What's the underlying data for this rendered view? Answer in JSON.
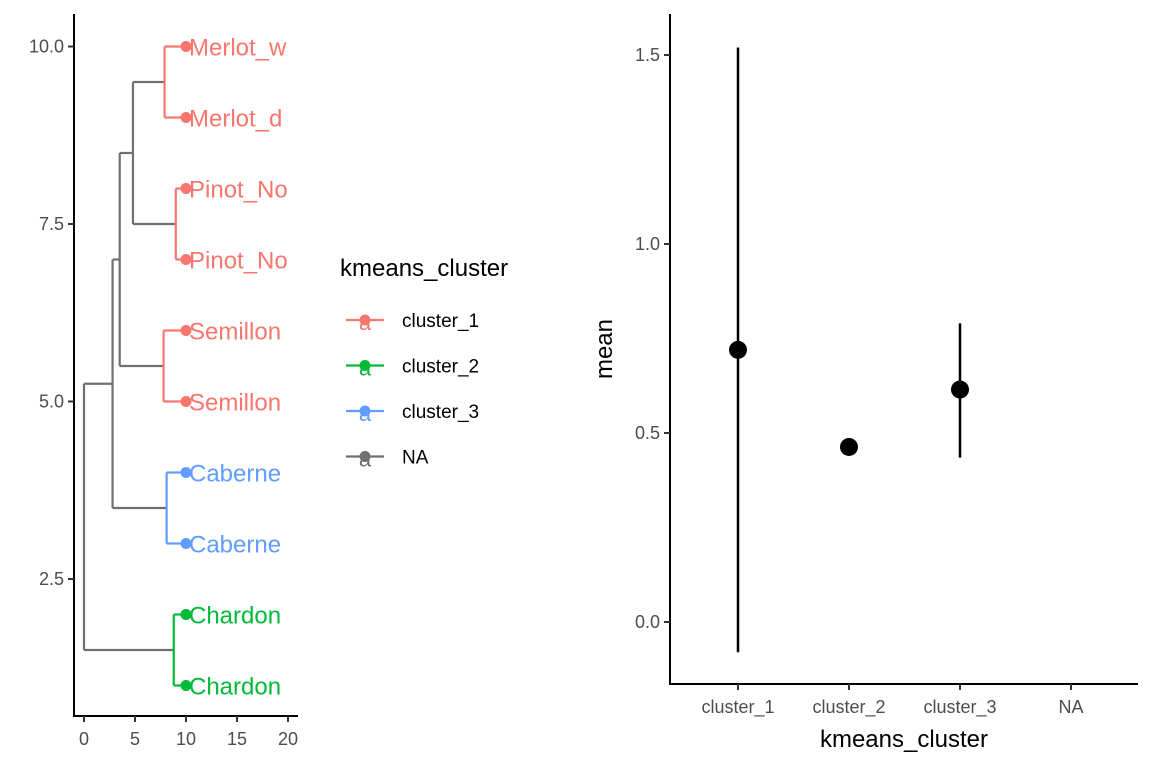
{
  "chart_data": [
    {
      "type": "dendrogram",
      "x_ticks": [
        0,
        5,
        10,
        15,
        20
      ],
      "x_tick_labels": [
        "0",
        "5",
        "10",
        "15",
        "20"
      ],
      "y_ticks": [
        2.5,
        5.0,
        7.5,
        10.0
      ],
      "y_tick_labels": [
        "2.5",
        "5.0",
        "7.5",
        "10.0"
      ],
      "xlim": [
        -1,
        21
      ],
      "ylim": [
        0.6,
        10.4
      ],
      "tips": [
        {
          "label": "Merlot_w",
          "y": 10,
          "cluster": "cluster_1"
        },
        {
          "label": "Merlot_d",
          "y": 9,
          "cluster": "cluster_1"
        },
        {
          "label": "Pinot_No",
          "y": 8,
          "cluster": "cluster_1"
        },
        {
          "label": "Pinot_No",
          "y": 7,
          "cluster": "cluster_1"
        },
        {
          "label": "Semillon",
          "y": 6,
          "cluster": "cluster_1"
        },
        {
          "label": "Semillon",
          "y": 5,
          "cluster": "cluster_1"
        },
        {
          "label": "Caberne",
          "y": 4,
          "cluster": "cluster_3"
        },
        {
          "label": "Caberne",
          "y": 3,
          "cluster": "cluster_3"
        },
        {
          "label": "Chardon",
          "y": 2,
          "cluster": "cluster_2"
        },
        {
          "label": "Chardon",
          "y": 1,
          "cluster": "cluster_2"
        }
      ],
      "tip_x": 10,
      "edges": [
        {
          "x1": 0,
          "y1": 1.5,
          "x2": 0,
          "y2": 5.25,
          "cluster": "NA"
        },
        {
          "x1": 0,
          "y1": 1.5,
          "x2": 8.8,
          "y2": 1.5,
          "cluster": "NA"
        },
        {
          "x1": 0,
          "y1": 5.25,
          "x2": 2.8,
          "y2": 5.25,
          "cluster": "NA"
        },
        {
          "x1": 8.8,
          "y1": 1,
          "x2": 8.8,
          "y2": 2,
          "cluster": "cluster_2"
        },
        {
          "x1": 8.8,
          "y1": 1,
          "x2": 10,
          "y2": 1,
          "cluster": "cluster_2"
        },
        {
          "x1": 8.8,
          "y1": 2,
          "x2": 10,
          "y2": 2,
          "cluster": "cluster_2"
        },
        {
          "x1": 2.8,
          "y1": 3.5,
          "x2": 2.8,
          "y2": 7.0,
          "cluster": "NA"
        },
        {
          "x1": 2.8,
          "y1": 3.5,
          "x2": 8.1,
          "y2": 3.5,
          "cluster": "NA"
        },
        {
          "x1": 8.1,
          "y1": 3,
          "x2": 8.1,
          "y2": 4,
          "cluster": "cluster_3"
        },
        {
          "x1": 8.1,
          "y1": 3,
          "x2": 10,
          "y2": 3,
          "cluster": "cluster_3"
        },
        {
          "x1": 8.1,
          "y1": 4,
          "x2": 10,
          "y2": 4,
          "cluster": "cluster_3"
        },
        {
          "x1": 2.8,
          "y1": 7.0,
          "x2": 3.5,
          "y2": 7.0,
          "cluster": "NA"
        },
        {
          "x1": 3.5,
          "y1": 5.5,
          "x2": 3.5,
          "y2": 8.5,
          "cluster": "NA"
        },
        {
          "x1": 3.5,
          "y1": 5.5,
          "x2": 7.8,
          "y2": 5.5,
          "cluster": "NA"
        },
        {
          "x1": 7.8,
          "y1": 5,
          "x2": 7.8,
          "y2": 6,
          "cluster": "cluster_1"
        },
        {
          "x1": 7.8,
          "y1": 5,
          "x2": 10,
          "y2": 5,
          "cluster": "cluster_1"
        },
        {
          "x1": 7.8,
          "y1": 6,
          "x2": 10,
          "y2": 6,
          "cluster": "cluster_1"
        },
        {
          "x1": 3.5,
          "y1": 8.5,
          "x2": 4.8,
          "y2": 8.5,
          "cluster": "NA"
        },
        {
          "x1": 4.8,
          "y1": 7.5,
          "x2": 4.8,
          "y2": 9.5,
          "cluster": "NA"
        },
        {
          "x1": 4.8,
          "y1": 7.5,
          "x2": 9.0,
          "y2": 7.5,
          "cluster": "NA"
        },
        {
          "x1": 9.0,
          "y1": 7,
          "x2": 9.0,
          "y2": 8,
          "cluster": "cluster_1"
        },
        {
          "x1": 9.0,
          "y1": 7,
          "x2": 10,
          "y2": 7,
          "cluster": "cluster_1"
        },
        {
          "x1": 9.0,
          "y1": 8,
          "x2": 10,
          "y2": 8,
          "cluster": "cluster_1"
        },
        {
          "x1": 4.8,
          "y1": 9.5,
          "x2": 7.9,
          "y2": 9.5,
          "cluster": "NA"
        },
        {
          "x1": 7.9,
          "y1": 9,
          "x2": 7.9,
          "y2": 10,
          "cluster": "cluster_1"
        },
        {
          "x1": 7.9,
          "y1": 9,
          "x2": 10,
          "y2": 9,
          "cluster": "cluster_1"
        },
        {
          "x1": 7.9,
          "y1": 10,
          "x2": 10,
          "y2": 10,
          "cluster": "cluster_1"
        }
      ],
      "legend": {
        "title": "kmeans_cluster",
        "placement": "right",
        "key_glyph": "a",
        "items": [
          {
            "label": "cluster_1",
            "color": "#f8766d"
          },
          {
            "label": "cluster_2",
            "color": "#00ba38"
          },
          {
            "label": "cluster_3",
            "color": "#619cff"
          },
          {
            "label": "NA",
            "color": "#707070"
          }
        ]
      }
    },
    {
      "type": "pointrange",
      "categories": [
        "cluster_1",
        "cluster_2",
        "cluster_3",
        "NA"
      ],
      "points": [
        {
          "category": "cluster_1",
          "mean": 0.72,
          "low": -0.08,
          "high": 1.52
        },
        {
          "category": "cluster_2",
          "mean": 0.463,
          "low": null,
          "high": null
        },
        {
          "category": "cluster_3",
          "mean": 0.615,
          "low": 0.435,
          "high": 0.79
        },
        {
          "category": "NA",
          "mean": null,
          "low": null,
          "high": null
        }
      ],
      "xlabel": "kmeans_cluster",
      "ylabel": "mean",
      "y_ticks": [
        0.0,
        0.5,
        1.0,
        1.5
      ],
      "y_tick_labels": [
        "0.0",
        "0.5",
        "1.0",
        "1.5"
      ],
      "ylim": [
        -0.165,
        1.6
      ],
      "grid": false
    }
  ]
}
